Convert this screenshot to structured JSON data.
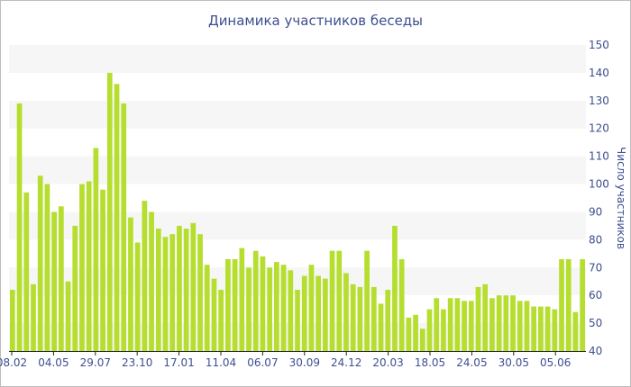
{
  "chart_data": {
    "type": "bar",
    "title": "Динамика участников беседы",
    "xlabel": "",
    "ylabel": "Число участников",
    "ylim": [
      40,
      150
    ],
    "y_ticks": [
      40,
      50,
      60,
      70,
      80,
      90,
      100,
      110,
      120,
      130,
      140,
      150
    ],
    "x_tick_labels": [
      "08.02",
      "04.05",
      "29.07",
      "23.10",
      "17.01",
      "11.04",
      "06.07",
      "30.09",
      "24.12",
      "20.03",
      "18.05",
      "24.05",
      "30.05",
      "05.06"
    ],
    "grid": "alternating horizontal bands",
    "bar_color": "#b5de2e",
    "values": [
      62,
      129,
      97,
      64,
      103,
      100,
      90,
      92,
      65,
      85,
      100,
      101,
      113,
      98,
      140,
      136,
      129,
      88,
      79,
      94,
      90,
      84,
      81,
      82,
      85,
      84,
      86,
      82,
      71,
      66,
      62,
      73,
      73,
      77,
      70,
      76,
      74,
      70,
      72,
      71,
      69,
      62,
      67,
      71,
      67,
      66,
      76,
      76,
      68,
      64,
      63,
      76,
      63,
      57,
      62,
      85,
      73,
      52,
      53,
      48,
      55,
      59,
      55,
      59,
      59,
      58,
      58,
      63,
      64,
      59,
      60,
      60,
      60,
      58,
      58,
      56,
      56,
      56,
      55,
      73,
      73,
      54,
      73
    ]
  }
}
